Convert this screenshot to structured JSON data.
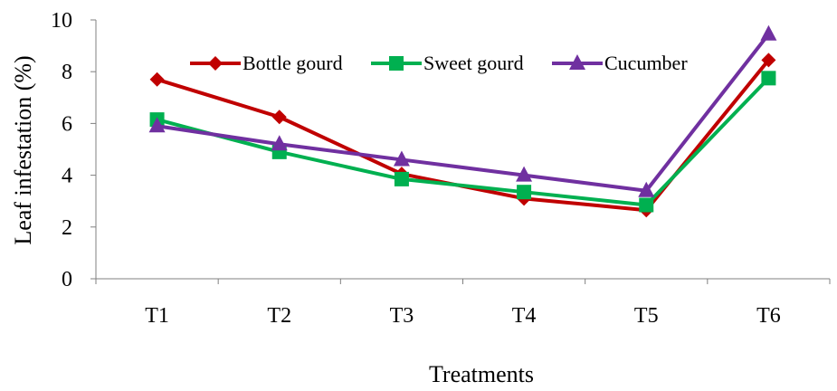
{
  "chart_data": {
    "type": "line",
    "categories": [
      "T1",
      "T2",
      "T3",
      "T4",
      "T5",
      "T6"
    ],
    "series": [
      {
        "name": "Bottle gourd",
        "values": [
          7.7,
          6.25,
          4.05,
          3.1,
          2.65,
          8.45
        ],
        "color": "#c00000",
        "marker": "diamond"
      },
      {
        "name": "Sweet gourd",
        "values": [
          6.15,
          4.9,
          3.85,
          3.35,
          2.85,
          7.75
        ],
        "color": "#00b050",
        "marker": "square"
      },
      {
        "name": "Cucumber",
        "values": [
          5.9,
          5.2,
          4.6,
          4.0,
          3.4,
          9.45
        ],
        "color": "#7030a0",
        "marker": "triangle"
      }
    ],
    "title": "",
    "xlabel": "Treatments",
    "ylabel": "Leaf infestation (%)",
    "ylim": [
      0,
      10
    ],
    "yticks": [
      0,
      2,
      4,
      6,
      8,
      10
    ],
    "grid": false,
    "legend_position": "top-center"
  }
}
